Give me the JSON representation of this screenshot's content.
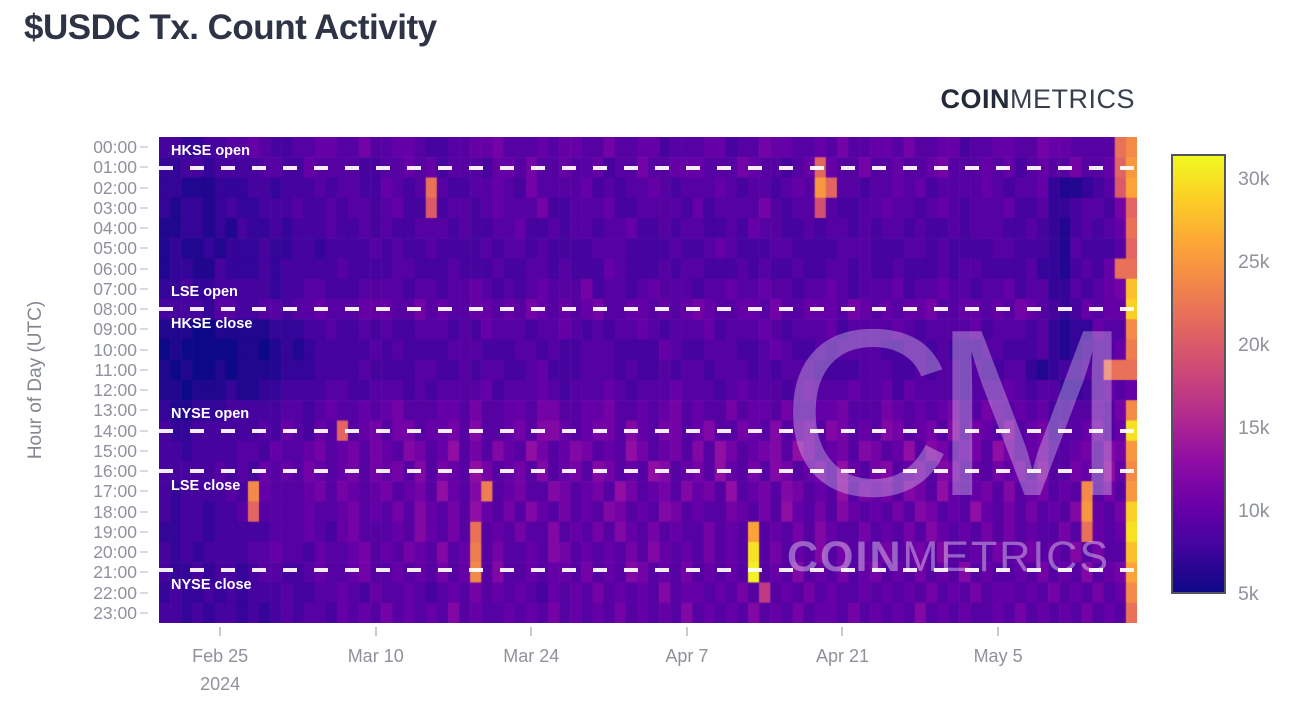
{
  "page": {
    "title": "$USDC Tx. Count Activity",
    "background": "#ffffff"
  },
  "logo": {
    "bold": "COIN",
    "light": "METRICS"
  },
  "watermark": {
    "monogram": "CM",
    "bold": "COIN",
    "light": "METRICS"
  },
  "chart_data": {
    "type": "heatmap",
    "title": "$USDC Tx. Count Activity",
    "xlabel": "",
    "ylabel": "Hour of Day (UTC)",
    "y_categories": [
      "00:00",
      "01:00",
      "02:00",
      "03:00",
      "04:00",
      "05:00",
      "06:00",
      "07:00",
      "08:00",
      "09:00",
      "10:00",
      "11:00",
      "12:00",
      "13:00",
      "14:00",
      "15:00",
      "16:00",
      "17:00",
      "18:00",
      "19:00",
      "20:00",
      "21:00",
      "22:00",
      "23:00"
    ],
    "x_axis": {
      "n_cols": 88,
      "ticks": [
        {
          "col": 5,
          "label": "Feb 25",
          "sublabel": "2024"
        },
        {
          "col": 19,
          "label": "Mar 10",
          "sublabel": ""
        },
        {
          "col": 33,
          "label": "Mar 24",
          "sublabel": ""
        },
        {
          "col": 47,
          "label": "Apr 7",
          "sublabel": ""
        },
        {
          "col": 61,
          "label": "Apr 21",
          "sublabel": ""
        },
        {
          "col": 75,
          "label": "May 5",
          "sublabel": ""
        }
      ]
    },
    "colorbar": {
      "min": 5000,
      "max": 31500,
      "colormap": "plasma",
      "stops": [
        "#0d0887",
        "#41049d",
        "#6a00a8",
        "#8f0da4",
        "#b12a90",
        "#cc4778",
        "#e16462",
        "#f2844b",
        "#fca636",
        "#fcce25",
        "#f0f921"
      ],
      "ticks": [
        {
          "value": 5000,
          "label": "5k"
        },
        {
          "value": 10000,
          "label": "10k"
        },
        {
          "value": 15000,
          "label": "15k"
        },
        {
          "value": 20000,
          "label": "20k"
        },
        {
          "value": 25000,
          "label": "25k"
        },
        {
          "value": 30000,
          "label": "30k"
        }
      ]
    },
    "market_lines": [
      {
        "hour": 1.05,
        "label_above": "HKSE open",
        "label_below": ""
      },
      {
        "hour": 8.0,
        "label_above": "LSE open",
        "label_below": "HKSE close"
      },
      {
        "hour": 14.0,
        "label_above": "NYSE open",
        "label_below": ""
      },
      {
        "hour": 16.0,
        "label_above": "",
        "label_below": "LSE close"
      },
      {
        "hour": 20.9,
        "label_above": "",
        "label_below": "NYSE close"
      }
    ],
    "values_unit": "transactions",
    "cell_encoding": "Each character is a base-36 digit; numeric value x 1000 = tx count (e.g. '5'=5000, '9'=9000, 'a'=10000, 'k'=20000, 'v'=31000). rows[hour] has one char per day column.",
    "rows": [
      "88778899a98899aa99b99aa98899aab999a9aa99b99aa8999aa899baa99a9b99aa9b99aa899aa99baa9999mo",
      "7788788889988a99998899a9a89998aa9b99a99a899b99aaa999ba9989ala99b99a99ab999a9a89a99b99alp",
      "77666777887888989988a989m98899a98b9999a89899a98999a989989a9pl99899a9a89999a9899a766789kq",
      "767767877888988989989a88k89989a999b88999a8899998a89999b9899j98899a9989a98999a889778998bl",
      "66776768778788898898988999898899a889899899a8898998898a998898998989989889899988987689 89am",
      "67667677787788788889898898888989989888899988889889a98889988889998889989888899888769 8889l",
      "677668777878888898888998889888988998988 8a988898998889898898899898898889899888897768 98am",
      "77877888887889988899998998 99a98989a999b89989a999899a99a99899a98999a899a99899a8997798 9abs",
      "888879988998 99a999aaa99b9a99aa9a9ba9a9ab99aa9a9aba99aa9b99aaa9ba9a9aab99aa9a9ba9878a9aat",
      "66655666667778898898988999898a999899a989899a98999a8999a98999a89999a989999a899989 7677a99o",
      "565555566567678888898988889998889989889998888a9889998 89a98898999988998 98889988897678 99an",
      "65655656666777888898888998898998 89a888999898898998999898999888899988989 98988997678 899m",
      "665666766778888998899989899 99a8999a98999a98999a99989a99989a999a99a8a9999899 9a9899 7789a9an",
      "76677788888998 9a99a9ab999aa9b99aa9bb99aab99a9ab9a99b9aa9b99aab999ba9a9ab99ba9a9a8899 a9bo",
      "87788888898a98a9l9ab9bb9aab9c99ab9cca9abb9ca9bb9ac99ba9c9ab9cb9a9cb9ab9c9ba9c9ab899ab9au",
      "8878888998a99ab9ab9ba9cb9ad9b9ca9db9acb9a9db9ab9c9db9abc9db9ab9cb9ad9cb9ab9db9ab99ab9cbp",
      "888889898a9a9ba9ab9bab9c9ba9db9ab9c9ab9cb9a9dc9ab9da9b9cb9ab9da9bc9ab9cb9a9bab9c99ba9dao",
      "87888898oa999ab9ba9ab9ab9da9cn9ab99cb9ab9db9ab9cab9d9ab9cb9a9d9bab9cb9da9ab9c9ab9a9o9b9p",
      "87887889l9999a99ab9a9b9ca9b9da9b9ca9b9a9cb9a9cb9a99ba9b9da9b9ca9a9b9cb9a9da9b9b9a9cpa9bt",
      "778878888899 9a98ab999a9ca9b9m9a9b99c9a9b9ca9b9a99b9a9q9a9b9ca99b9a9b9ca9a9b9b9a99b9ma9au",
      "8787888899a998a99ab9a9ba9c9an9b99a9cb9a9a9b9ca9a9b9a9u9b9a9c9b9a9b9ab9c99a9b9ab9a9c9b99s",
      "877878878998 89a99ab99a9a9b9ao9c99a9aa9b9a9cb9a9b9a9a9v9a9c9a9b9ab9a9b9a9c9a99a9b9a9c9abq",
      "78778787888988 99a98a99a989a9b9a9a98a9a9b9a9a9c9aa9a9b9h9a9b9a99a9a9a9b9a9b9aa9a9b9a9b9ao",
      "887878878789 8998a9a9b9a9a9c9a99a9a9b9a9a9b9a9a9c9a9a9c9a9b9aa9b9a9a9c9a9a99a9b9a9a9b9a9m"
    ]
  }
}
